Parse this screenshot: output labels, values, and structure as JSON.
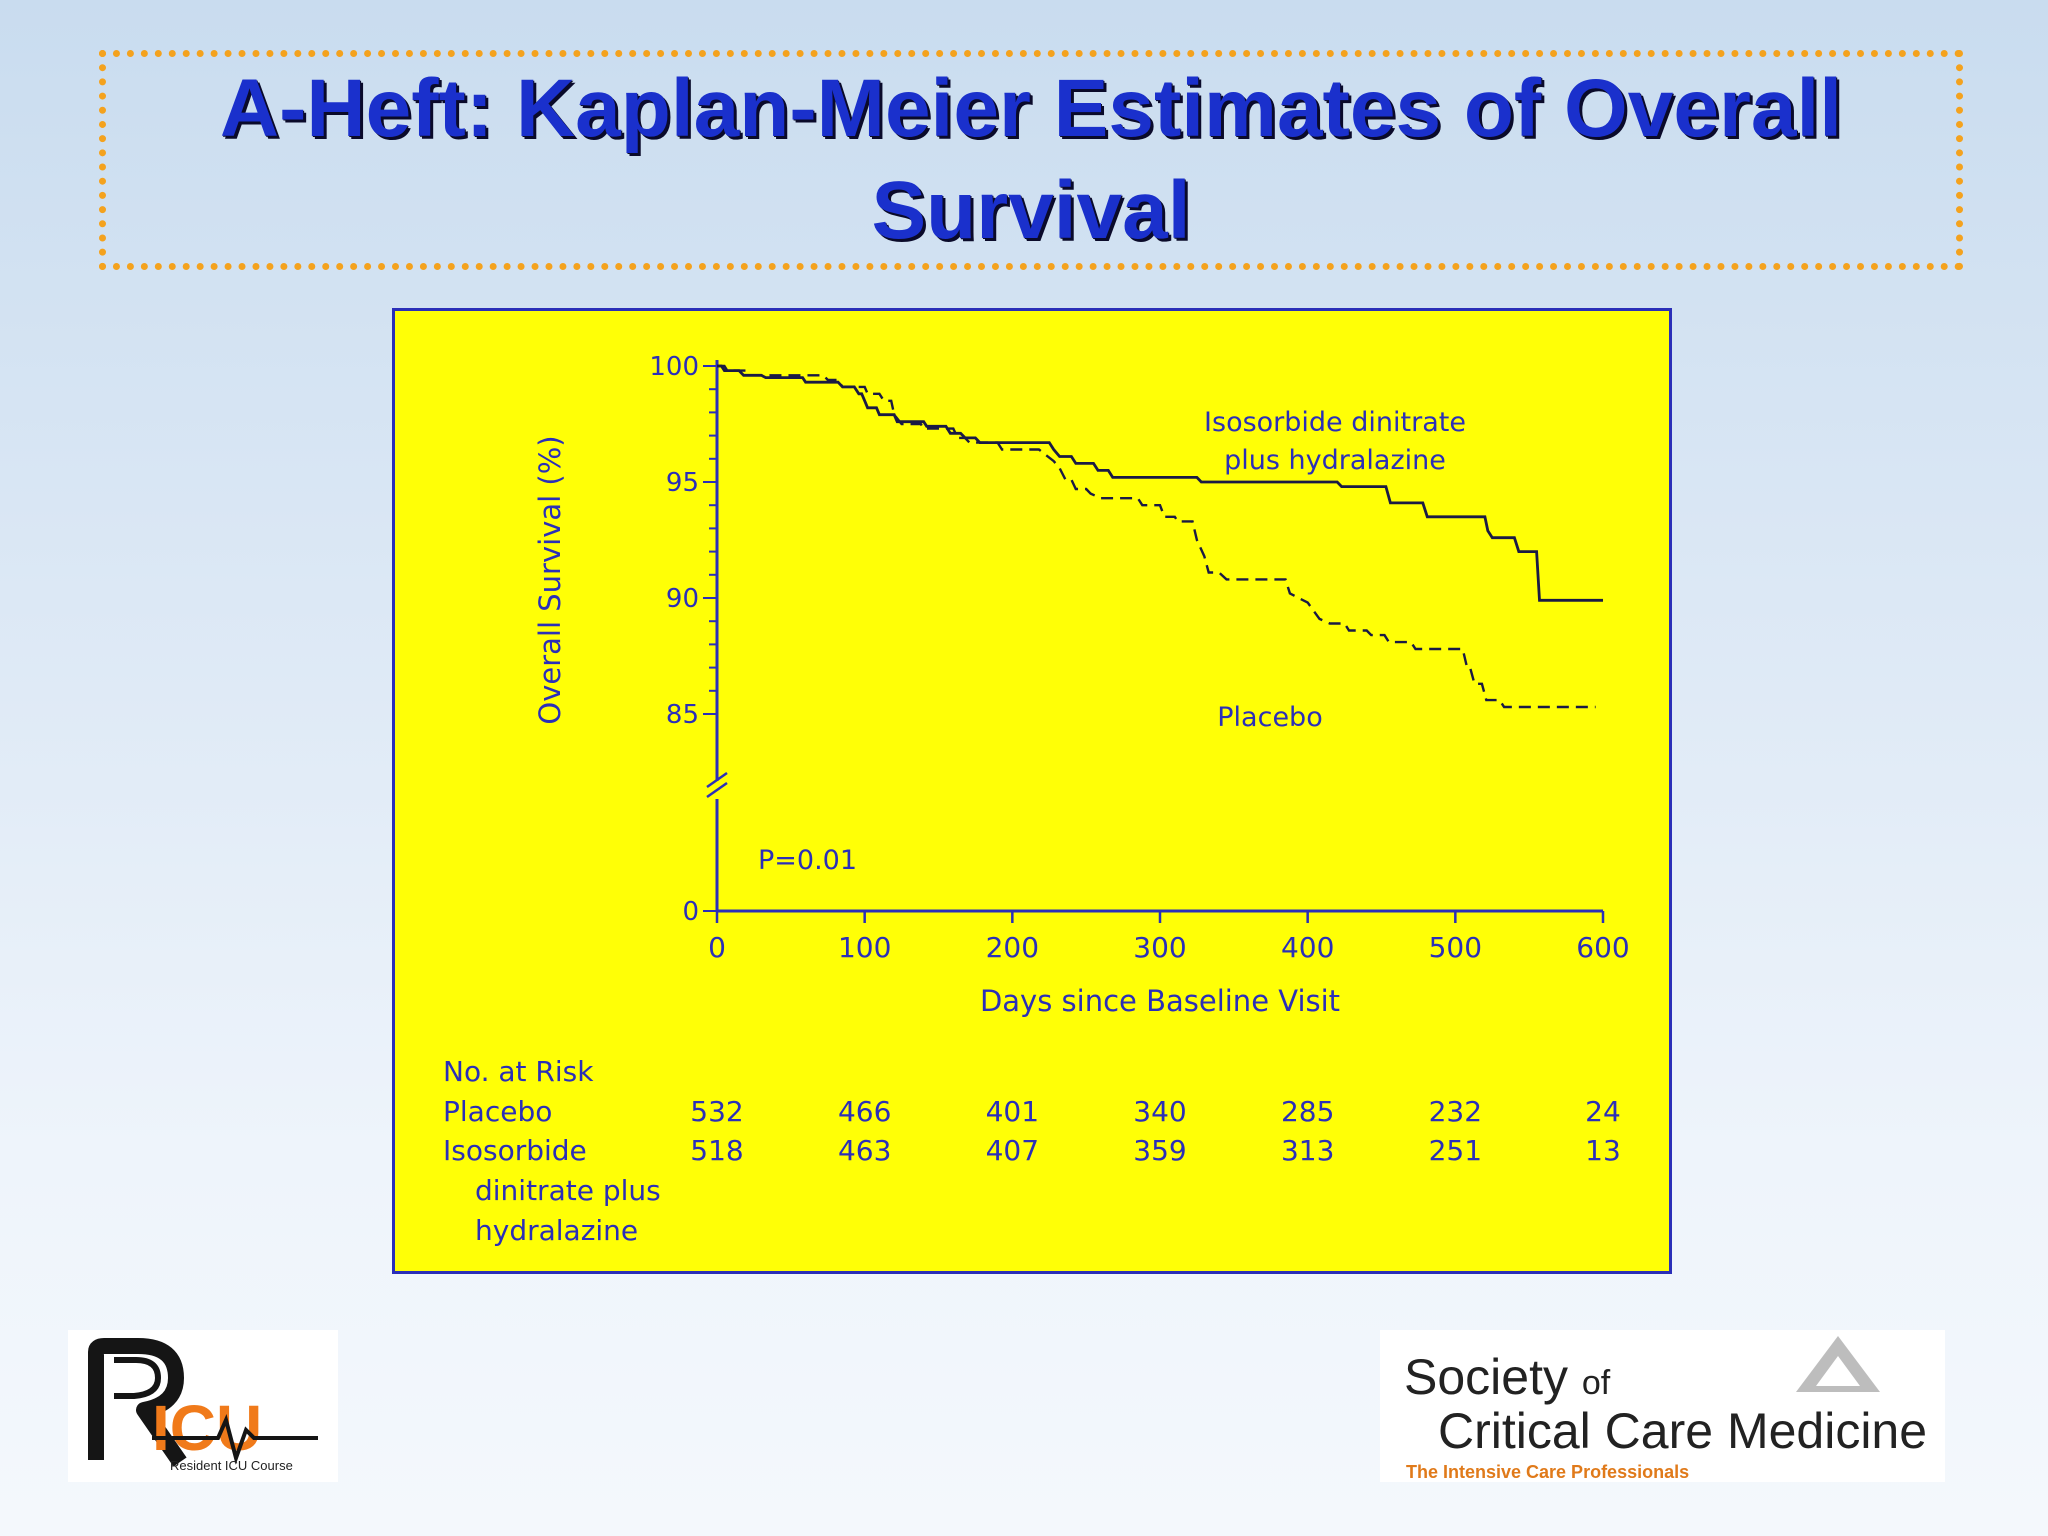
{
  "title": {
    "line1": "A-Heft: Kaplan-Meier Estimates of Overall",
    "line2": "Survival"
  },
  "chart_data": {
    "type": "line",
    "xlabel": "Days since Baseline Visit",
    "ylabel": "Overall Survival (%)",
    "x_ticks": [
      0,
      100,
      200,
      300,
      400,
      500,
      600
    ],
    "y_ticks": [
      100,
      95,
      90,
      85,
      0
    ],
    "xlim": [
      0,
      600
    ],
    "ylim_displayed": [
      85,
      100
    ],
    "axis_break": true,
    "annotation": "P=0.01",
    "series": [
      {
        "name": "Isosorbide dinitrate plus hydralazine",
        "label_lines": [
          "Isosorbide dinitrate",
          "plus hydralazine"
        ],
        "style": "solid",
        "points": [
          [
            0,
            100
          ],
          [
            3,
            100
          ],
          [
            5,
            99.8
          ],
          [
            15,
            99.8
          ],
          [
            18,
            99.6
          ],
          [
            30,
            99.6
          ],
          [
            33,
            99.5
          ],
          [
            58,
            99.5
          ],
          [
            60,
            99.3
          ],
          [
            82,
            99.3
          ],
          [
            85,
            99.1
          ],
          [
            93,
            99.1
          ],
          [
            96,
            98.8
          ],
          [
            98,
            98.8
          ],
          [
            100,
            98.5
          ],
          [
            102,
            98.2
          ],
          [
            108,
            98.2
          ],
          [
            110,
            97.9
          ],
          [
            120,
            97.9
          ],
          [
            122,
            97.6
          ],
          [
            140,
            97.6
          ],
          [
            142,
            97.4
          ],
          [
            155,
            97.4
          ],
          [
            158,
            97.1
          ],
          [
            165,
            97.1
          ],
          [
            168,
            96.9
          ],
          [
            175,
            96.9
          ],
          [
            178,
            96.7
          ],
          [
            225,
            96.7
          ],
          [
            228,
            96.4
          ],
          [
            232,
            96.1
          ],
          [
            240,
            96.1
          ],
          [
            243,
            95.8
          ],
          [
            255,
            95.8
          ],
          [
            258,
            95.5
          ],
          [
            265,
            95.5
          ],
          [
            268,
            95.2
          ],
          [
            325,
            95.2
          ],
          [
            328,
            95.0
          ],
          [
            420,
            95.0
          ],
          [
            423,
            94.8
          ],
          [
            453,
            94.8
          ],
          [
            456,
            94.1
          ],
          [
            478,
            94.1
          ],
          [
            481,
            93.5
          ],
          [
            520,
            93.5
          ],
          [
            522,
            92.9
          ],
          [
            525,
            92.6
          ],
          [
            540,
            92.6
          ],
          [
            543,
            92.0
          ],
          [
            555,
            92.0
          ],
          [
            557,
            89.9
          ],
          [
            600,
            89.9
          ]
        ]
      },
      {
        "name": "Placebo",
        "label_lines": [
          "Placebo"
        ],
        "style": "dashed",
        "points": [
          [
            0,
            100
          ],
          [
            5,
            100
          ],
          [
            7,
            99.8
          ],
          [
            20,
            99.8
          ],
          [
            23,
            99.6
          ],
          [
            48,
            99.6
          ],
          [
            51,
            99.6
          ],
          [
            72,
            99.6
          ],
          [
            75,
            99.4
          ],
          [
            82,
            99.4
          ],
          [
            85,
            99.1
          ],
          [
            100,
            99.1
          ],
          [
            102,
            98.8
          ],
          [
            110,
            98.8
          ],
          [
            113,
            98.5
          ],
          [
            118,
            98.5
          ],
          [
            120,
            97.9
          ],
          [
            125,
            97.5
          ],
          [
            138,
            97.5
          ],
          [
            140,
            97.3
          ],
          [
            160,
            97.3
          ],
          [
            163,
            96.9
          ],
          [
            168,
            96.9
          ],
          [
            171,
            96.7
          ],
          [
            190,
            96.7
          ],
          [
            193,
            96.4
          ],
          [
            218,
            96.4
          ],
          [
            222,
            96.2
          ],
          [
            228,
            95.9
          ],
          [
            232,
            95.6
          ],
          [
            236,
            95.1
          ],
          [
            240,
            95.1
          ],
          [
            243,
            94.7
          ],
          [
            250,
            94.7
          ],
          [
            253,
            94.5
          ],
          [
            260,
            94.3
          ],
          [
            285,
            94.3
          ],
          [
            288,
            94.0
          ],
          [
            300,
            94.0
          ],
          [
            303,
            93.5
          ],
          [
            310,
            93.5
          ],
          [
            312,
            93.3
          ],
          [
            322,
            93.3
          ],
          [
            325,
            92.5
          ],
          [
            330,
            91.8
          ],
          [
            333,
            91.1
          ],
          [
            340,
            91.1
          ],
          [
            345,
            90.8
          ],
          [
            385,
            90.8
          ],
          [
            388,
            90.2
          ],
          [
            400,
            89.8
          ],
          [
            408,
            89.1
          ],
          [
            415,
            88.9
          ],
          [
            425,
            88.9
          ],
          [
            428,
            88.6
          ],
          [
            440,
            88.6
          ],
          [
            443,
            88.4
          ],
          [
            452,
            88.4
          ],
          [
            455,
            88.1
          ],
          [
            470,
            88.1
          ],
          [
            473,
            87.8
          ],
          [
            505,
            87.8
          ],
          [
            508,
            87.0
          ],
          [
            510,
            87.0
          ],
          [
            513,
            86.3
          ],
          [
            518,
            86.3
          ],
          [
            521,
            85.6
          ],
          [
            530,
            85.6
          ],
          [
            533,
            85.3
          ],
          [
            595,
            85.3
          ]
        ]
      }
    ],
    "risk_table": {
      "header": "No. at Risk",
      "rows": [
        {
          "label_lines": [
            "Placebo"
          ],
          "values": [
            532,
            466,
            401,
            340,
            285,
            232,
            24
          ]
        },
        {
          "label_lines": [
            "Isosorbide",
            "dinitrate plus",
            "hydralazine"
          ],
          "values": [
            518,
            463,
            407,
            359,
            313,
            251,
            13
          ]
        }
      ]
    },
    "colors": {
      "background": "#ffff06",
      "ink": "#2b2fb8",
      "curves": "#1a1a44"
    }
  },
  "logos": {
    "left": {
      "mark": "RICU",
      "tagline": "Resident ICU Course"
    },
    "right": {
      "line1": "Society",
      "of": "of",
      "line2": "Critical Care Medicine",
      "tagline": "The Intensive Care Professionals"
    }
  }
}
